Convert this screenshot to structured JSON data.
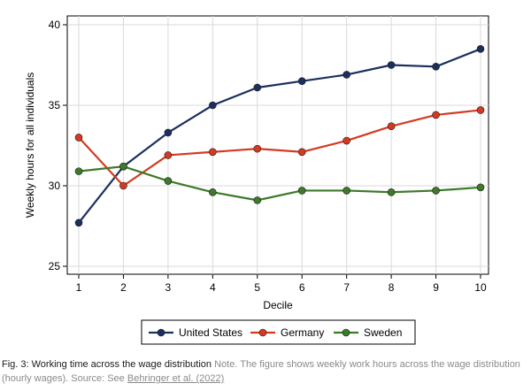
{
  "chart_data": {
    "type": "line",
    "xlabel": "Decile",
    "ylabel": "Weekly hours for all individuals",
    "x": [
      1,
      2,
      3,
      4,
      5,
      6,
      7,
      8,
      9,
      10
    ],
    "xlim": [
      1,
      10
    ],
    "ylim": [
      25,
      40
    ],
    "yticks": [
      25,
      30,
      35,
      40
    ],
    "grid": true,
    "legend_placement": "bottom",
    "series": [
      {
        "name": "United States",
        "color": "#1b2f5e",
        "values": [
          27.7,
          31.2,
          33.3,
          35.0,
          36.1,
          36.5,
          36.9,
          37.5,
          37.4,
          38.5
        ]
      },
      {
        "name": "Germany",
        "color": "#d43a22",
        "values": [
          33.0,
          30.0,
          31.9,
          32.1,
          32.3,
          32.1,
          32.8,
          33.7,
          34.4,
          34.7
        ]
      },
      {
        "name": "Sweden",
        "color": "#3d7a2a",
        "values": [
          30.9,
          31.2,
          30.3,
          29.6,
          29.1,
          29.7,
          29.7,
          29.6,
          29.7,
          29.9
        ]
      }
    ]
  },
  "caption": {
    "label": "Fig. 3: Working time across the wage distribution",
    "note": "Note. The figure shows weekly work hours across the wage distribution (hourly wages). Source: See",
    "link": "Behringer et al. (2022)"
  }
}
